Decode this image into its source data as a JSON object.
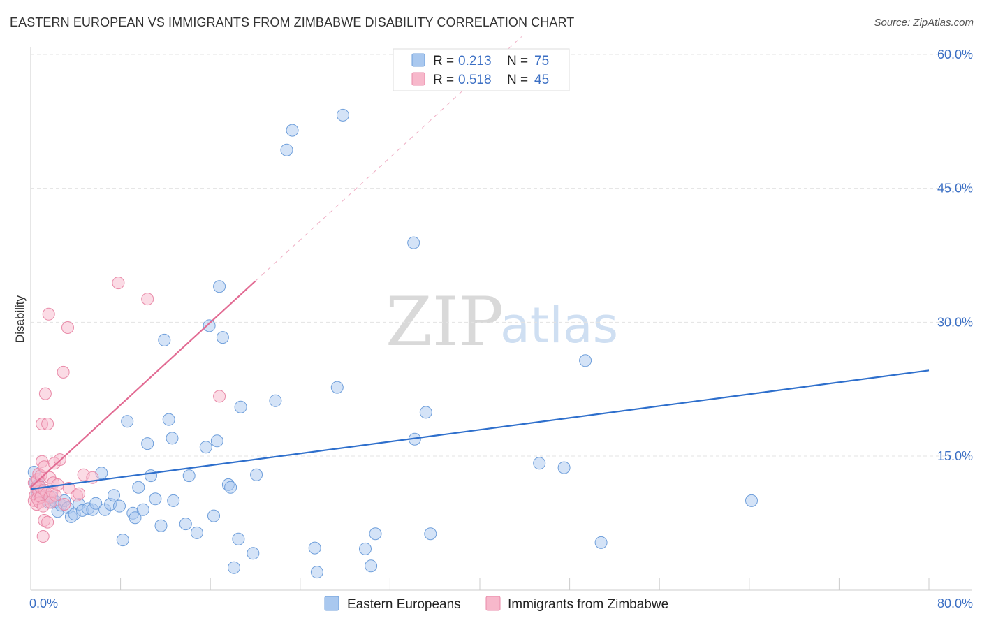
{
  "title": "EASTERN EUROPEAN VS IMMIGRANTS FROM ZIMBABWE DISABILITY CORRELATION CHART",
  "source": "Source: ZipAtlas.com",
  "watermark": {
    "zip": "ZIP",
    "atlas": "atlas"
  },
  "colors": {
    "blue_fill": "#a9c8ef",
    "blue_stroke": "#6f9fdb",
    "blue_line": "#2e6fcc",
    "pink_fill": "#f7b8cb",
    "pink_stroke": "#e98aa8",
    "pink_line": "#e26b93",
    "grid": "#e3e3e3",
    "axis_text": "#3b6fc4"
  },
  "legend": {
    "rows": [
      {
        "r_label": "R =",
        "r_value": "0.213",
        "n_label": "N =",
        "n_value": "75",
        "series": "blue"
      },
      {
        "r_label": "R =",
        "r_value": "0.518",
        "n_label": "N =",
        "n_value": "45",
        "series": "pink"
      }
    ]
  },
  "bottom_legend": [
    {
      "label": "Eastern Europeans",
      "series": "blue"
    },
    {
      "label": "Immigrants from Zimbabwe",
      "series": "pink"
    }
  ],
  "chart_data": {
    "type": "scatter",
    "title": "EASTERN EUROPEAN VS IMMIGRANTS FROM ZIMBABWE DISABILITY CORRELATION CHART",
    "xlabel": "",
    "ylabel": "Disability",
    "xlim": [
      0,
      80
    ],
    "ylim": [
      0,
      62
    ],
    "x_tick_labels": [
      {
        "value": 0,
        "label": "0.0%"
      },
      {
        "value": 80,
        "label": "80.0%"
      }
    ],
    "y_tick_labels": [
      {
        "value": 15,
        "label": "15.0%"
      },
      {
        "value": 30,
        "label": "30.0%"
      },
      {
        "value": 45,
        "label": "45.0%"
      },
      {
        "value": 60,
        "label": "60.0%"
      }
    ],
    "x_minor_ticks": [
      0,
      8,
      16,
      24,
      32,
      40,
      48,
      56,
      64,
      72,
      80
    ],
    "series": [
      {
        "name": "Eastern Europeans",
        "color": "blue",
        "R": 0.213,
        "N": 75,
        "trend": {
          "x0": 0,
          "y0": 11.3,
          "x1": 80,
          "y1": 24.6
        },
        "points": [
          [
            0.3,
            13.2
          ],
          [
            0.4,
            12.0
          ],
          [
            0.5,
            11.5
          ],
          [
            0.6,
            10.8
          ],
          [
            0.7,
            11.8
          ],
          [
            0.9,
            10.5
          ],
          [
            1.1,
            11.0
          ],
          [
            1.4,
            10.2
          ],
          [
            1.6,
            9.8
          ],
          [
            1.9,
            10.4
          ],
          [
            2.2,
            9.9
          ],
          [
            2.4,
            8.8
          ],
          [
            2.7,
            9.5
          ],
          [
            3.0,
            10.0
          ],
          [
            3.3,
            9.2
          ],
          [
            3.6,
            8.2
          ],
          [
            3.9,
            8.5
          ],
          [
            4.3,
            9.6
          ],
          [
            4.6,
            8.9
          ],
          [
            5.1,
            9.1
          ],
          [
            5.5,
            9.0
          ],
          [
            5.8,
            9.7
          ],
          [
            6.3,
            13.1
          ],
          [
            6.6,
            9.0
          ],
          [
            7.1,
            9.6
          ],
          [
            7.4,
            10.6
          ],
          [
            7.9,
            9.4
          ],
          [
            8.2,
            5.6
          ],
          [
            8.6,
            18.9
          ],
          [
            9.1,
            8.6
          ],
          [
            9.3,
            8.1
          ],
          [
            9.6,
            11.5
          ],
          [
            10.0,
            9.0
          ],
          [
            10.4,
            16.4
          ],
          [
            10.7,
            12.8
          ],
          [
            11.1,
            10.2
          ],
          [
            11.6,
            7.2
          ],
          [
            11.9,
            28.0
          ],
          [
            12.3,
            19.1
          ],
          [
            12.6,
            17.0
          ],
          [
            12.7,
            10.0
          ],
          [
            13.8,
            7.4
          ],
          [
            14.1,
            12.8
          ],
          [
            14.8,
            6.4
          ],
          [
            15.6,
            16.0
          ],
          [
            15.9,
            29.6
          ],
          [
            16.3,
            8.3
          ],
          [
            16.6,
            16.7
          ],
          [
            16.8,
            34.0
          ],
          [
            17.1,
            28.3
          ],
          [
            17.6,
            11.8
          ],
          [
            17.8,
            11.5
          ],
          [
            18.1,
            2.5
          ],
          [
            18.5,
            5.7
          ],
          [
            18.7,
            20.5
          ],
          [
            19.8,
            4.1
          ],
          [
            20.1,
            12.9
          ],
          [
            21.8,
            21.2
          ],
          [
            22.8,
            49.3
          ],
          [
            23.3,
            51.5
          ],
          [
            25.3,
            4.7
          ],
          [
            25.5,
            2.0
          ],
          [
            27.3,
            22.7
          ],
          [
            27.8,
            53.2
          ],
          [
            29.8,
            4.6
          ],
          [
            30.3,
            2.7
          ],
          [
            30.7,
            6.3
          ],
          [
            34.1,
            38.9
          ],
          [
            34.2,
            16.9
          ],
          [
            35.2,
            19.9
          ],
          [
            35.6,
            6.3
          ],
          [
            45.3,
            14.2
          ],
          [
            47.5,
            13.7
          ],
          [
            49.4,
            25.7
          ],
          [
            50.8,
            5.3
          ],
          [
            64.2,
            10.0
          ]
        ]
      },
      {
        "name": "Immigrants from Zimbabwe",
        "color": "pink",
        "R": 0.518,
        "N": 45,
        "trend": {
          "x0": 0,
          "y0": 11.5,
          "x1": 20.0,
          "y1": 34.6,
          "dash_x1": 80,
          "dash_y1": 103.9
        },
        "points": [
          [
            0.3,
            10.0
          ],
          [
            0.3,
            12.0
          ],
          [
            0.4,
            10.6
          ],
          [
            0.5,
            11.4
          ],
          [
            0.5,
            9.6
          ],
          [
            0.6,
            12.4
          ],
          [
            0.6,
            10.2
          ],
          [
            0.7,
            11.0
          ],
          [
            0.7,
            13.0
          ],
          [
            0.8,
            9.8
          ],
          [
            0.8,
            11.6
          ],
          [
            0.9,
            12.8
          ],
          [
            0.9,
            10.4
          ],
          [
            1.0,
            14.4
          ],
          [
            1.0,
            18.6
          ],
          [
            1.1,
            6.0
          ],
          [
            1.1,
            9.4
          ],
          [
            1.2,
            7.8
          ],
          [
            1.2,
            11.2
          ],
          [
            1.2,
            13.8
          ],
          [
            1.3,
            22.0
          ],
          [
            1.4,
            10.8
          ],
          [
            1.5,
            18.6
          ],
          [
            1.5,
            7.6
          ],
          [
            1.6,
            30.9
          ],
          [
            1.7,
            12.6
          ],
          [
            1.7,
            10.4
          ],
          [
            1.8,
            9.8
          ],
          [
            1.9,
            11.0
          ],
          [
            2.0,
            12.0
          ],
          [
            2.1,
            14.2
          ],
          [
            2.2,
            10.6
          ],
          [
            2.4,
            11.8
          ],
          [
            2.6,
            14.6
          ],
          [
            2.9,
            24.4
          ],
          [
            3.0,
            9.6
          ],
          [
            3.3,
            29.4
          ],
          [
            3.4,
            11.4
          ],
          [
            4.1,
            10.6
          ],
          [
            4.3,
            10.8
          ],
          [
            4.7,
            12.9
          ],
          [
            5.5,
            12.6
          ],
          [
            7.8,
            34.4
          ],
          [
            10.4,
            32.6
          ],
          [
            16.8,
            21.7
          ]
        ]
      }
    ]
  }
}
